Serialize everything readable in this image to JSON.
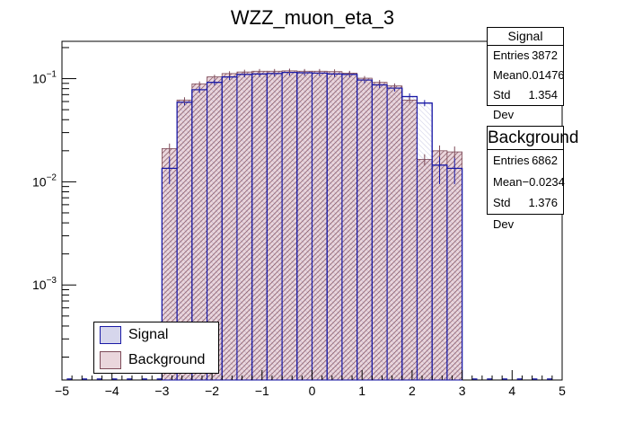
{
  "chart_data": {
    "type": "bar",
    "title": "WZZ_muon_eta_3",
    "xlabel": "",
    "ylabel": "",
    "xlim": [
      -5,
      5
    ],
    "ylim": [
      0.00012,
      0.23
    ],
    "log_y": true,
    "x_ticks": [
      "−5",
      "−4",
      "−3",
      "−2",
      "−1",
      "0",
      "1",
      "2",
      "3",
      "4",
      "5"
    ],
    "y_ticks": [
      {
        "value": 0.1,
        "base": "10",
        "exp": "−1"
      },
      {
        "value": 0.01,
        "base": "10",
        "exp": "−2"
      },
      {
        "value": 0.001,
        "base": "10",
        "exp": "−3"
      }
    ],
    "bin_edges": [
      -3.0,
      -2.7,
      -2.4,
      -2.1,
      -1.8,
      -1.5,
      -1.2,
      -0.9,
      -0.6,
      -0.3,
      0.0,
      0.3,
      0.6,
      0.9,
      1.2,
      1.5,
      1.8,
      2.1,
      2.4,
      2.7,
      3.0
    ],
    "series": [
      {
        "name": "Signal",
        "color": "#1a1aa6",
        "values": [
          0.0135,
          0.059,
          0.078,
          0.092,
          0.104,
          0.11,
          0.111,
          0.112,
          0.115,
          0.114,
          0.113,
          0.111,
          0.11,
          0.097,
          0.087,
          0.081,
          0.067,
          0.058,
          0.0145,
          0.0135
        ],
        "errors": [
          0.004,
          0.004,
          0.0055,
          0.006,
          0.007,
          0.007,
          0.007,
          0.007,
          0.008,
          0.007,
          0.007,
          0.007,
          0.007,
          0.007,
          0.006,
          0.006,
          0.005,
          0.004,
          0.005,
          0.004
        ]
      },
      {
        "name": "Background",
        "color": "#c97a8a",
        "values": [
          0.021,
          0.062,
          0.089,
          0.104,
          0.112,
          0.116,
          0.118,
          0.118,
          0.119,
          0.118,
          0.118,
          0.117,
          0.113,
          0.101,
          0.092,
          0.085,
          0.062,
          0.0165,
          0.02,
          0.0195
        ],
        "errors": [
          0.0025,
          0.004,
          0.005,
          0.005,
          0.006,
          0.006,
          0.006,
          0.006,
          0.006,
          0.006,
          0.006,
          0.006,
          0.006,
          0.005,
          0.005,
          0.005,
          0.004,
          0.002,
          0.0025,
          0.0025
        ]
      }
    ],
    "legend": {
      "position": "bottom-left",
      "entries": [
        "Signal",
        "Background"
      ]
    }
  },
  "stats": {
    "signal": {
      "title": "Signal",
      "rows": [
        {
          "label": "Entries",
          "value": "3872"
        },
        {
          "label": "Mean",
          "value": "0.01476"
        },
        {
          "label": "Std Dev",
          "value": "1.354"
        }
      ]
    },
    "background": {
      "title": "Background",
      "rows": [
        {
          "label": "Entries",
          "value": "6862"
        },
        {
          "label": "Mean",
          "value": "−0.0234"
        },
        {
          "label": "Std Dev",
          "value": "1.376"
        }
      ]
    }
  }
}
